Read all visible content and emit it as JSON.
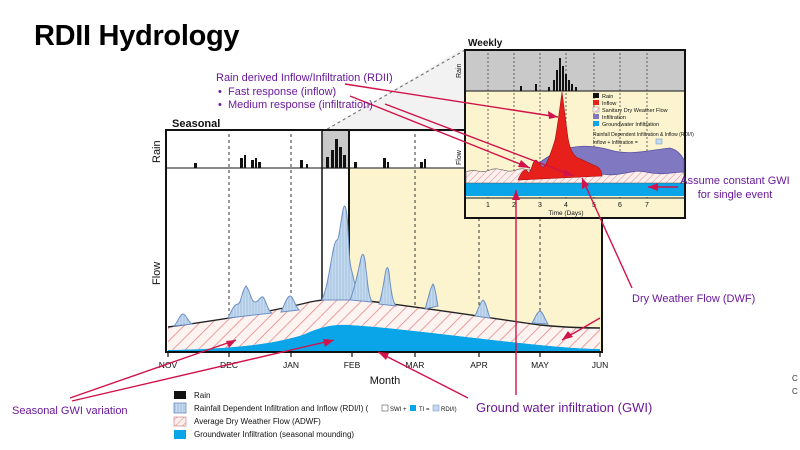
{
  "title": "RDII Hydrology",
  "colors": {
    "rain": "#111111",
    "rdii_fill": "#bcd4ea",
    "rdii_stroke": "#6c8fc4",
    "adwf_hatch": "#e2898a",
    "gwi_fill": "#0aa5e8",
    "inflow_red": "#e8201c",
    "infiltration_purple": "#8078c0",
    "annotation_line": "#d0134a",
    "annotation_text": "#6a1a9a",
    "highlight_zone": "#fbf4cf"
  },
  "seasonal": {
    "panel_title": "Seasonal",
    "rain_axis_label": "Rain",
    "flow_axis_label": "Flow",
    "x_axis_label": "Month",
    "months": [
      "NOV",
      "DEC",
      "JAN",
      "FEB",
      "MAR",
      "APR",
      "MAY",
      "JUN"
    ]
  },
  "weekly": {
    "panel_title": "Weekly",
    "rain_axis_label": "Rain",
    "flow_axis_label": "Flow",
    "x_axis_label": "Time (Days)",
    "day_ticks": [
      "1",
      "2",
      "3",
      "4",
      "5",
      "6",
      "7"
    ],
    "legend": {
      "items": [
        "Rain",
        "Inflow",
        "Sanitary Dry Weather Flow",
        "Infiltration",
        "Groundwater Infiltration"
      ],
      "formula_title": "Rainfall Dependent Infiltration & Inflow (RDI/I)",
      "formula": "Inflow + Infiltration = "
    }
  },
  "legend": {
    "rain": "Rain",
    "rdii": "Rainfall Dependent Infiltration and Inflow (RDI/I) (",
    "rdii_formula_swi": "SWI +",
    "rdii_formula_ti": "TI =",
    "rdii_formula_rdii": "RDI/I)",
    "adwf": "Average Dry Weather Flow (ADWF)",
    "gwi": "Groundwater Infiltration (seasonal mounding)"
  },
  "annotations": {
    "rdii_heading": "Rain derived Inflow/Infiltration (RDII)",
    "rdii_bullet_1": "Fast response (inflow)",
    "rdii_bullet_2": "Medium response (infiltration)",
    "constant_gwi_1": "Assume constant GWI",
    "constant_gwi_2": "for single event",
    "dwf": "Dry Weather Flow (DWF)",
    "seasonal_gwi": "Seasonal GWI variation",
    "gwi": "Ground water infiltration (GWI)"
  },
  "edge_note": [
    "C",
    "C"
  ]
}
